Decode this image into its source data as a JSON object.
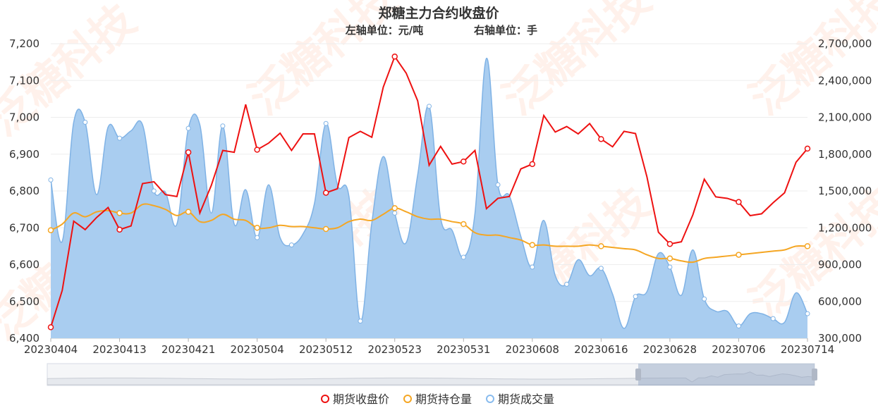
{
  "chart_data": {
    "type": "line",
    "title": "郑糖主力合约收盘价",
    "subtitle_left": "左轴单位：元/吨",
    "subtitle_right": "右轴单位：手",
    "watermark": "泛糖科技",
    "x_labels": [
      "20230404",
      "20230413",
      "20230421",
      "20230504",
      "20230512",
      "20230523",
      "20230531",
      "20230608",
      "20230616",
      "20230628",
      "20230706",
      "20230714"
    ],
    "y_left": {
      "min": 6400,
      "max": 7200,
      "ticks": [
        "6,400",
        "6,500",
        "6,600",
        "6,700",
        "6,800",
        "6,900",
        "7,000",
        "7,100",
        "7,200"
      ]
    },
    "y_right": {
      "min": 300000,
      "max": 2700000,
      "ticks": [
        "300,000",
        "600,000",
        "900,000",
        "1,200,000",
        "1,500,000",
        "1,800,000",
        "2,100,000",
        "2,400,000",
        "2,700,000"
      ]
    },
    "grid": true,
    "legend_position": "bottom-center",
    "series": [
      {
        "name": "期货收盘价",
        "axis": "left",
        "type": "line",
        "color": "#ee1111",
        "values": [
          6430,
          6530,
          6718,
          6695,
          6728,
          6755,
          6695,
          6705,
          6820,
          6825,
          6790,
          6785,
          6905,
          6740,
          6815,
          6910,
          6905,
          7035,
          6912,
          6930,
          6957,
          6910,
          6955,
          6955,
          6795,
          6806,
          6945,
          6962,
          6946,
          7082,
          7165,
          7120,
          7045,
          6870,
          6921,
          6873,
          6880,
          6910,
          6752,
          6780,
          6785,
          6860,
          6873,
          7005,
          6960,
          6975,
          6955,
          6983,
          6941,
          6920,
          6962,
          6956,
          6838,
          6688,
          6656,
          6662,
          6735,
          6832,
          6784,
          6780,
          6770,
          6733,
          6738,
          6768,
          6795,
          6878,
          6915
        ]
      },
      {
        "name": "期货持仓量",
        "axis": "right",
        "type": "line",
        "color": "#f5a623",
        "values": [
          1180000,
          1230000,
          1320000,
          1290000,
          1330000,
          1340000,
          1320000,
          1320000,
          1390000,
          1380000,
          1350000,
          1300000,
          1330000,
          1250000,
          1260000,
          1310000,
          1270000,
          1260000,
          1200000,
          1200000,
          1220000,
          1210000,
          1210000,
          1200000,
          1190000,
          1200000,
          1250000,
          1270000,
          1260000,
          1310000,
          1360000,
          1330000,
          1290000,
          1270000,
          1270000,
          1250000,
          1230000,
          1160000,
          1140000,
          1140000,
          1120000,
          1100000,
          1060000,
          1060000,
          1050000,
          1050000,
          1050000,
          1060000,
          1050000,
          1040000,
          1030000,
          1020000,
          980000,
          950000,
          950000,
          930000,
          920000,
          950000,
          960000,
          970000,
          980000,
          990000,
          1000000,
          1010000,
          1020000,
          1050000,
          1050000
        ]
      },
      {
        "name": "期货成交量",
        "axis": "right",
        "type": "area",
        "color": "#88bbee",
        "values": [
          1590000,
          1090000,
          2060000,
          2060000,
          1470000,
          2020000,
          1930000,
          1990000,
          2040000,
          1500000,
          1490000,
          1230000,
          2010000,
          2040000,
          1320000,
          2030000,
          1230000,
          1510000,
          1120000,
          1550000,
          1120000,
          1060000,
          1150000,
          1400000,
          2050000,
          1550000,
          1460000,
          440000,
          1240000,
          1780000,
          1320000,
          1080000,
          1630000,
          2190000,
          1280000,
          1180000,
          960000,
          1320000,
          2580000,
          1550000,
          1460000,
          1130000,
          880000,
          1260000,
          810000,
          740000,
          940000,
          810000,
          870000,
          660000,
          380000,
          640000,
          680000,
          990000,
          880000,
          650000,
          1020000,
          620000,
          520000,
          520000,
          400000,
          500000,
          500000,
          460000,
          430000,
          670000,
          500000
        ]
      }
    ],
    "legend": [
      "期货收盘价",
      "期货持仓量",
      "期货成交量"
    ]
  }
}
